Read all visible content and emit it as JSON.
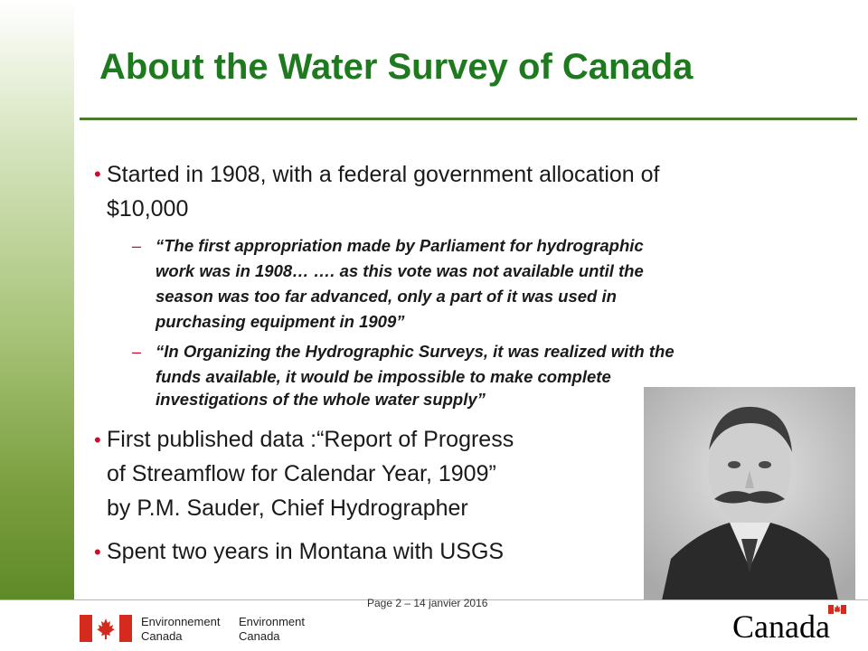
{
  "slide": {
    "title": "About the Water Survey of Canada",
    "bullets": [
      "Started in 1908, with a federal government allocation of",
      "$10,000",
      "First published data :“Report of Progress",
      "of Streamflow for Calendar Year, 1909”",
      "by P.M. Sauder, Chief Hydrographer",
      "Spent two years in Montana with USGS"
    ],
    "quote1": [
      "“The first appropriation made by Parliament for hydrographic",
      "work was in 1908…  …. as this vote was not available until the",
      "season was too far advanced, only a part of it was used in",
      "purchasing equipment in 1909”"
    ],
    "quote2": [
      "“In Organizing the Hydrographic Surveys, it was realized with the",
      "funds available, it would be impossible to make complete",
      "investigations of the whole water supply”"
    ]
  },
  "footer": {
    "page_label": "Page 2 – 14 janvier 2016",
    "env_en_1": "Environnement",
    "env_en_2": "Canada",
    "env_fr_1": "Environment",
    "env_fr_2": "Canada",
    "wordmark": "Canada"
  },
  "colors": {
    "title_green": "#1f7a1f",
    "bullet_red": "#c8102e"
  }
}
